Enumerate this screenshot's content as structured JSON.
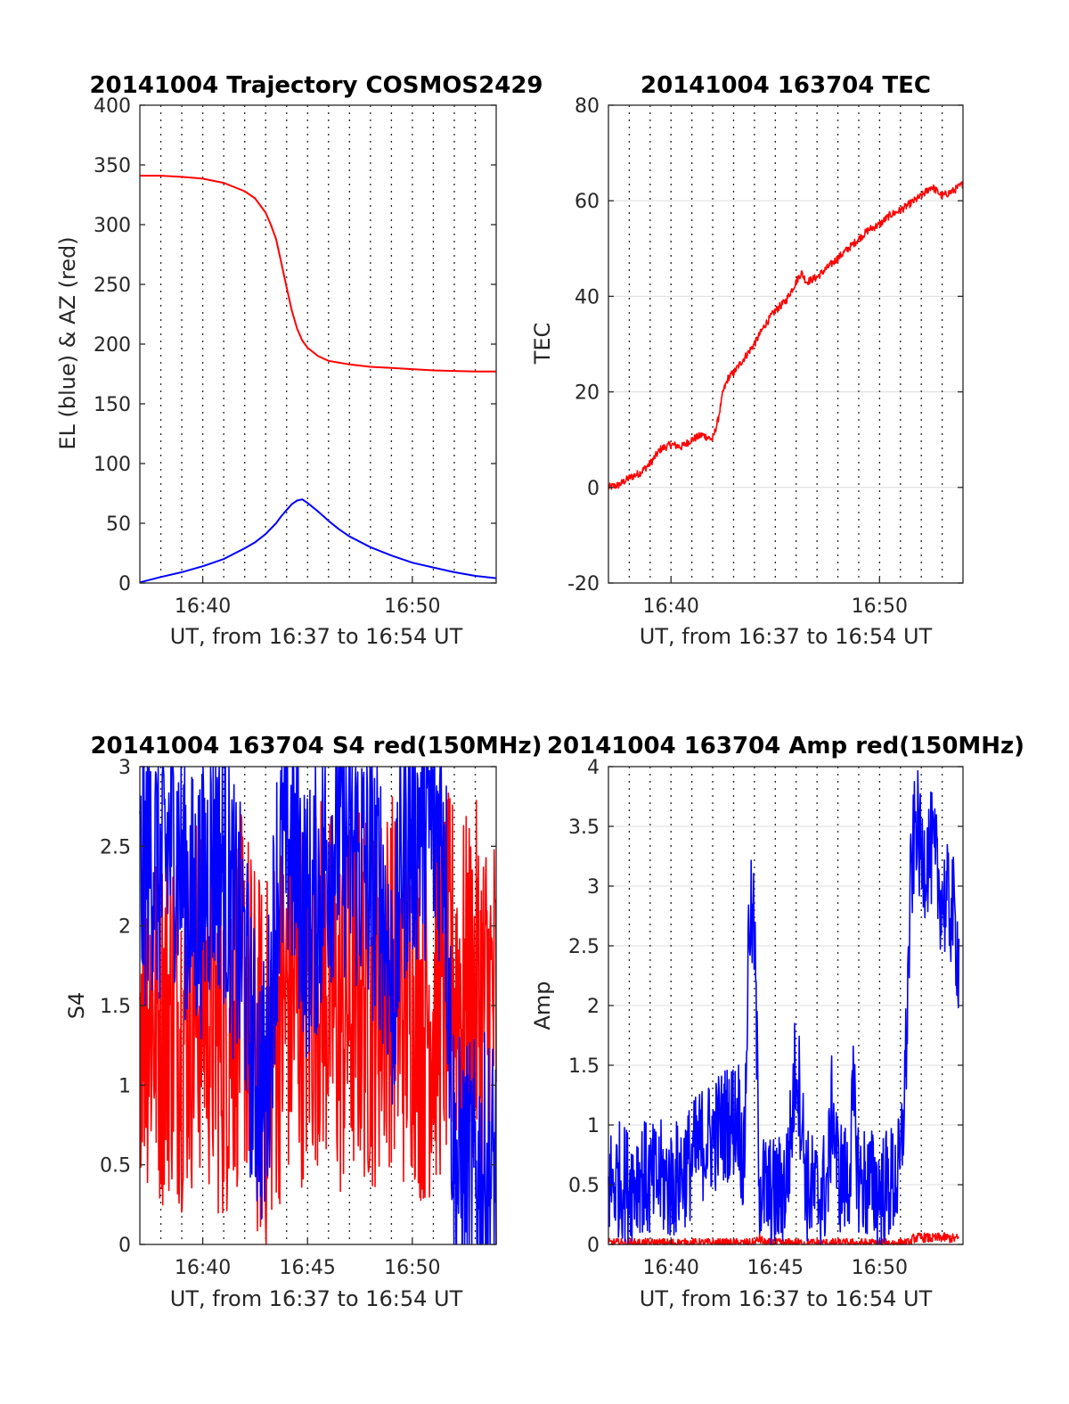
{
  "figure": {
    "background": "#ffffff",
    "grid_color": "#262626"
  },
  "chart_data": [
    {
      "id": "trajectory",
      "type": "line",
      "title": "20141004 Trajectory COSMOS2429",
      "xlabel": "UT, from 16:37 to 16:54 UT",
      "ylabel": "EL (blue) & AZ (red)",
      "xlim": [
        16.6167,
        16.9
      ],
      "ylim": [
        0,
        400
      ],
      "xticks": [
        {
          "value": 16.6667,
          "label": "16:40"
        },
        {
          "value": 16.8333,
          "label": "16:50"
        }
      ],
      "yticks": [
        0,
        50,
        100,
        150,
        200,
        250,
        300,
        350,
        400
      ],
      "vertical_dotted_grid": true,
      "grid": "dotted vertical",
      "series": [
        {
          "color": "#ff0000",
          "x": [
            16.6167,
            16.6333,
            16.65,
            16.6667,
            16.6833,
            16.7,
            16.7083,
            16.7167,
            16.7208,
            16.725,
            16.7292,
            16.7333,
            16.7375,
            16.7417,
            16.7458,
            16.75,
            16.7583,
            16.7667,
            16.7833,
            16.8,
            16.8167,
            16.8333,
            16.85,
            16.8667,
            16.8833,
            16.9
          ],
          "y": [
            341,
            341,
            340,
            338.5,
            335,
            328,
            322,
            310,
            300,
            288,
            268,
            248,
            228,
            213,
            203,
            197,
            190,
            186,
            183,
            181,
            180,
            179,
            178,
            177.5,
            177,
            177
          ]
        },
        {
          "color": "#0000ff",
          "x": [
            16.6167,
            16.6333,
            16.65,
            16.6667,
            16.6833,
            16.7,
            16.7083,
            16.7167,
            16.725,
            16.7292,
            16.7333,
            16.7375,
            16.7417,
            16.7458,
            16.75,
            16.7583,
            16.7667,
            16.775,
            16.7833,
            16.8,
            16.8167,
            16.8333,
            16.85,
            16.8667,
            16.8833,
            16.9
          ],
          "y": [
            0.5,
            5,
            9,
            14,
            20,
            29,
            34,
            41,
            50,
            56,
            61,
            66,
            69,
            70,
            67,
            60,
            52,
            45,
            39,
            30,
            23,
            17,
            13,
            9,
            6,
            4
          ]
        }
      ]
    },
    {
      "id": "tec",
      "type": "line",
      "title": "20141004 163704 TEC",
      "xlabel": "UT, from 16:37 to 16:54 UT",
      "ylabel": "TEC",
      "xlim": [
        16.6167,
        16.9
      ],
      "ylim": [
        -20,
        80
      ],
      "xticks": [
        {
          "value": 16.6667,
          "label": "16:40"
        },
        {
          "value": 16.8333,
          "label": "16:50"
        }
      ],
      "yticks": [
        -20,
        0,
        20,
        40,
        60,
        80
      ],
      "vertical_dotted_grid": true,
      "grid": "dotted vertical, solid horizontal",
      "series": [
        {
          "color": "#ff0000",
          "noise": 0.8,
          "x": [
            16.6167,
            16.625,
            16.6333,
            16.6417,
            16.65,
            16.6583,
            16.6667,
            16.675,
            16.6833,
            16.6917,
            16.7,
            16.7042,
            16.7083,
            16.7125,
            16.7167,
            16.725,
            16.7333,
            16.7417,
            16.75,
            16.7583,
            16.7667,
            16.7708,
            16.775,
            16.7833,
            16.7917,
            16.8,
            16.8083,
            16.8167,
            16.825,
            16.8333,
            16.8417,
            16.85,
            16.8583,
            16.8667,
            16.875,
            16.8833,
            16.8917,
            16.9
          ],
          "y": [
            0,
            0.5,
            2,
            3,
            5,
            8,
            9,
            8.5,
            10,
            11,
            10,
            14,
            20,
            23,
            24,
            27,
            30,
            34,
            37,
            39,
            43,
            45,
            43,
            44,
            46,
            48,
            50,
            52,
            54,
            55,
            57,
            58,
            59.5,
            61,
            63,
            61,
            62,
            63.5
          ]
        }
      ]
    },
    {
      "id": "s4",
      "type": "line",
      "title": "20141004 163704 S4 red(150MHz)",
      "xlabel": "UT, from 16:37 to 16:54 UT",
      "ylabel": "S4",
      "xlim": [
        16.6167,
        16.9
      ],
      "ylim": [
        0,
        3
      ],
      "xticks": [
        {
          "value": 16.6667,
          "label": "16:40"
        },
        {
          "value": 16.75,
          "label": "16:45"
        },
        {
          "value": 16.8333,
          "label": "16:50"
        }
      ],
      "yticks": [
        0,
        0.5,
        1,
        1.5,
        2,
        2.5,
        3
      ],
      "vertical_dotted_grid": true,
      "grid": "dotted vertical",
      "series": [
        {
          "color": "#ff0000",
          "noise": 1.2,
          "x": [
            16.6167,
            16.625,
            16.6333,
            16.6417,
            16.65,
            16.6583,
            16.6667,
            16.675,
            16.6833,
            16.6917,
            16.7,
            16.7083,
            16.7167,
            16.725,
            16.7333,
            16.7417,
            16.75,
            16.7583,
            16.7667,
            16.775,
            16.7833,
            16.7917,
            16.8,
            16.8083,
            16.8167,
            16.825,
            16.8333,
            16.8417,
            16.85,
            16.8583,
            16.8667,
            16.875,
            16.8833,
            16.8917,
            16.9
          ],
          "y": [
            1.6,
            1.5,
            1.4,
            1.5,
            1.4,
            1.5,
            1.6,
            1.4,
            1.3,
            1.5,
            1.6,
            1.2,
            1.1,
            1.4,
            1.5,
            1.6,
            1.5,
            1.7,
            1.6,
            1.4,
            1.5,
            1.6,
            1.5,
            1.6,
            1.7,
            1.5,
            1.6,
            1.4,
            1.5,
            1.6,
            1.7,
            1.5,
            1.6,
            1.5,
            1.5
          ]
        },
        {
          "color": "#0000ff",
          "noise": 0.9,
          "x": [
            16.6167,
            16.625,
            16.6333,
            16.6417,
            16.65,
            16.6583,
            16.6667,
            16.675,
            16.6833,
            16.6917,
            16.7,
            16.7042,
            16.7083,
            16.7125,
            16.7167,
            16.7208,
            16.725,
            16.7333,
            16.7417,
            16.75,
            16.7583,
            16.7667,
            16.775,
            16.7833,
            16.7917,
            16.8,
            16.8083,
            16.8125,
            16.8167,
            16.8208,
            16.825,
            16.8333,
            16.8417,
            16.85,
            16.8583,
            16.8667,
            16.875,
            16.8833,
            16.8917,
            16.9
          ],
          "y": [
            2.2,
            2.5,
            2.3,
            2.6,
            2.4,
            2.1,
            2.2,
            2.5,
            2.4,
            2.0,
            1.8,
            1.3,
            1.1,
            1.0,
            0.9,
            1.5,
            2.2,
            2.6,
            2.4,
            2.0,
            2.2,
            2.5,
            2.6,
            2.5,
            2.4,
            2.3,
            2.2,
            2.0,
            1.6,
            1.8,
            2.5,
            2.6,
            2.7,
            2.6,
            2.7,
            0.45,
            0.42,
            0.4,
            0.44,
            0.45
          ]
        }
      ]
    },
    {
      "id": "amp",
      "type": "line",
      "title": "20141004 163704 Amp red(150MHz)",
      "xlabel": "UT, from 16:37 to 16:54 UT",
      "ylabel": "Amp",
      "xlim": [
        16.6167,
        16.9
      ],
      "ylim": [
        0,
        4
      ],
      "xticks": [
        {
          "value": 16.6667,
          "label": "16:40"
        },
        {
          "value": 16.75,
          "label": "16:45"
        },
        {
          "value": 16.8333,
          "label": "16:50"
        }
      ],
      "yticks": [
        0,
        0.5,
        1,
        1.5,
        2,
        2.5,
        3,
        3.5,
        4
      ],
      "vertical_dotted_grid": true,
      "grid": "dotted vertical, solid horizontal",
      "series": [
        {
          "color": "#ff0000",
          "noise": 0.04,
          "x": [
            16.6167,
            16.7,
            16.7333,
            16.7375,
            16.7417,
            16.8583,
            16.86,
            16.8667,
            16.875,
            16.8833,
            16.8917,
            16.8967
          ],
          "y": [
            0.01,
            0.01,
            0.01,
            0.05,
            0.01,
            0.01,
            0.05,
            0.06,
            0.05,
            0.06,
            0.05,
            0.05
          ]
        },
        {
          "color": "#0000ff",
          "noise": 0.5,
          "x": [
            16.6167,
            16.625,
            16.6333,
            16.6417,
            16.65,
            16.6583,
            16.6667,
            16.675,
            16.6833,
            16.6917,
            16.7,
            16.7083,
            16.7167,
            16.7208,
            16.725,
            16.7292,
            16.7333,
            16.7375,
            16.7417,
            16.75,
            16.7583,
            16.7625,
            16.7667,
            16.7708,
            16.775,
            16.7833,
            16.7917,
            16.7958,
            16.8,
            16.8083,
            16.8125,
            16.8167,
            16.825,
            16.8333,
            16.8417,
            16.85,
            16.8542,
            16.8583,
            16.8625,
            16.8667,
            16.875,
            16.8833,
            16.8917,
            16.8967
          ],
          "y": [
            0.5,
            0.55,
            0.5,
            0.6,
            0.5,
            0.55,
            0.5,
            0.6,
            0.7,
            0.85,
            0.9,
            1.0,
            1.05,
            1.1,
            0.6,
            2.8,
            2.6,
            0.5,
            0.45,
            0.4,
            0.5,
            0.9,
            1.6,
            1.1,
            0.5,
            0.4,
            0.5,
            1.2,
            0.6,
            0.5,
            1.2,
            0.55,
            0.5,
            0.45,
            0.5,
            0.6,
            1.5,
            3.0,
            3.6,
            3.2,
            3.3,
            2.9,
            2.8,
            2.4
          ]
        }
      ]
    }
  ]
}
